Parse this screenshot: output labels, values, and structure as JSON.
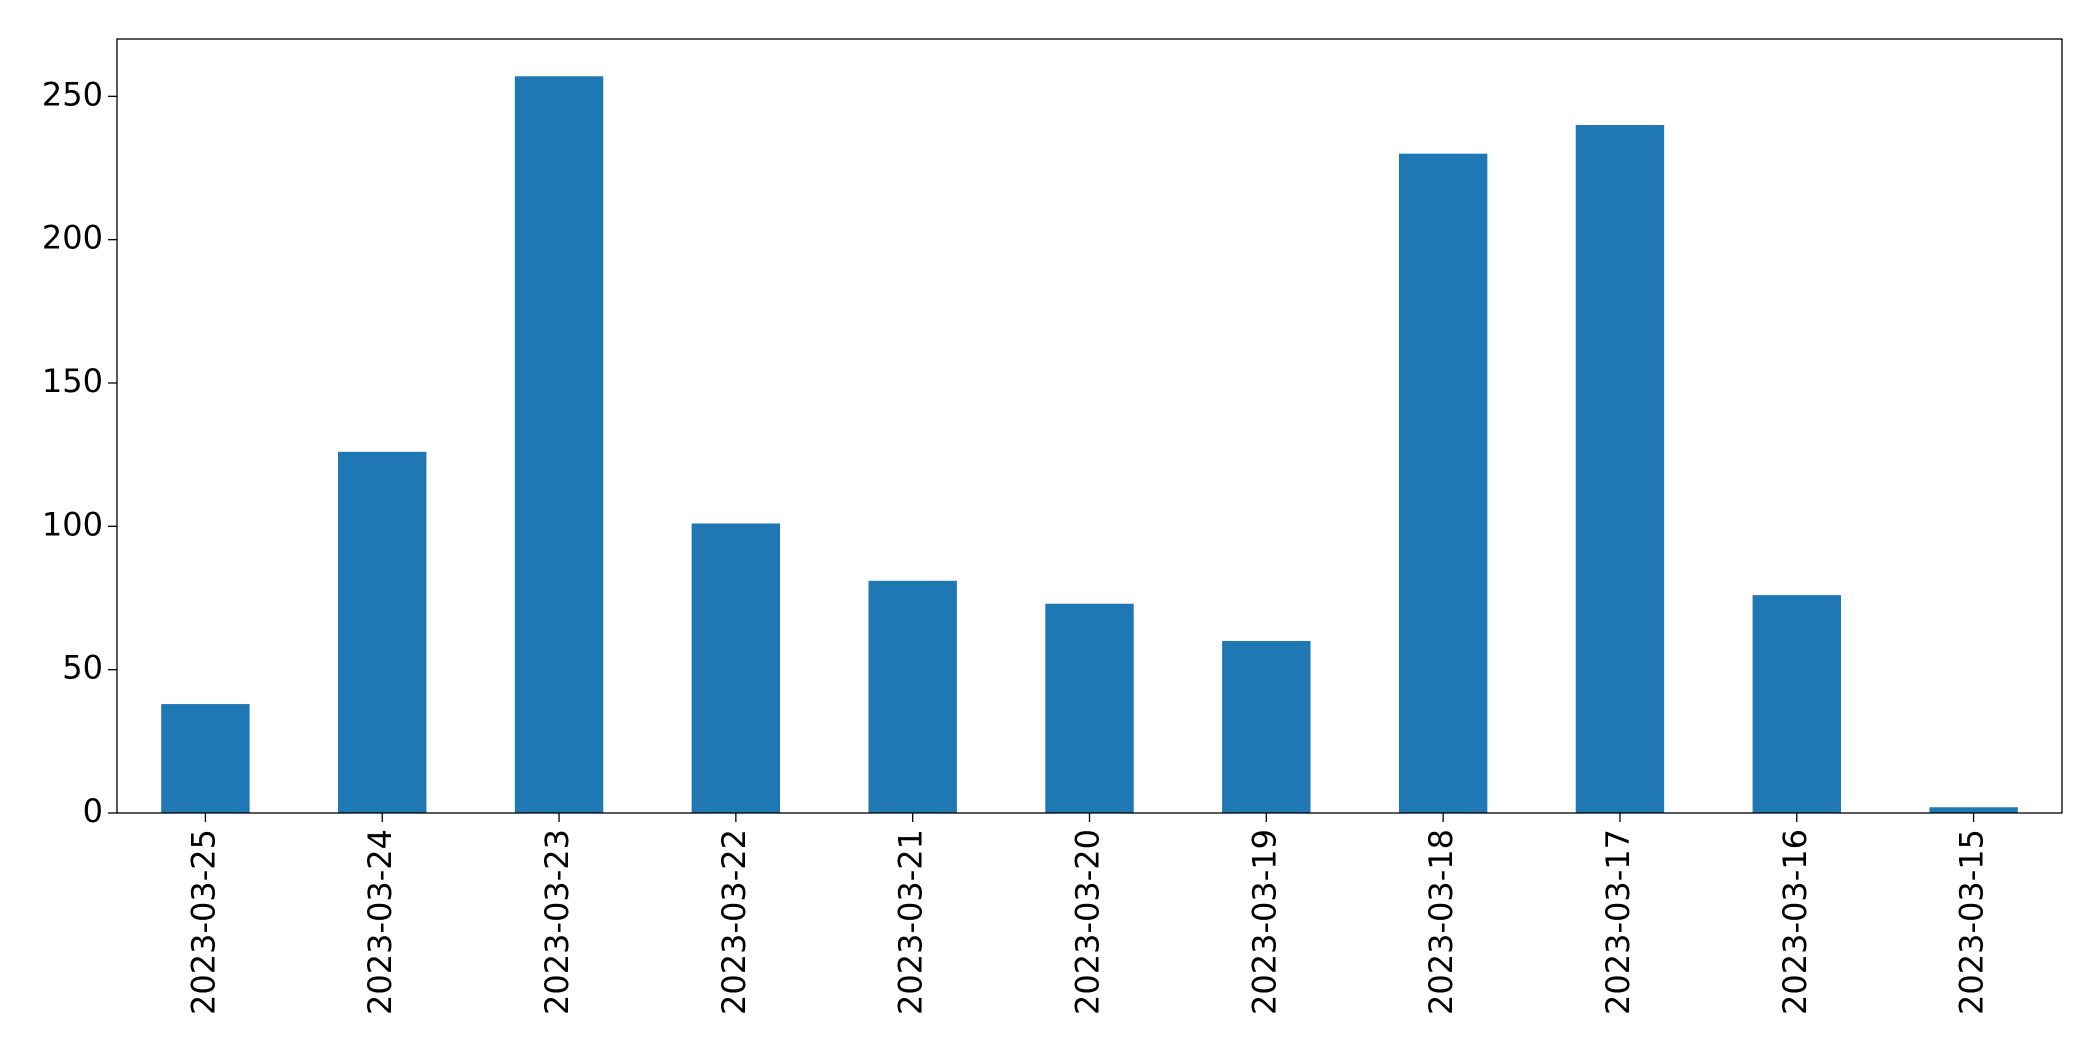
{
  "chart_data": {
    "type": "bar",
    "categories": [
      "2023-03-25",
      "2023-03-24",
      "2023-03-23",
      "2023-03-22",
      "2023-03-21",
      "2023-03-20",
      "2023-03-19",
      "2023-03-18",
      "2023-03-17",
      "2023-03-16",
      "2023-03-15"
    ],
    "values": [
      38,
      126,
      257,
      101,
      81,
      73,
      60,
      230,
      240,
      76,
      2
    ],
    "color": "#1f77b4",
    "ylim": [
      0,
      270
    ],
    "yticks": [
      0,
      50,
      100,
      150,
      200,
      250
    ],
    "grid": false
  }
}
